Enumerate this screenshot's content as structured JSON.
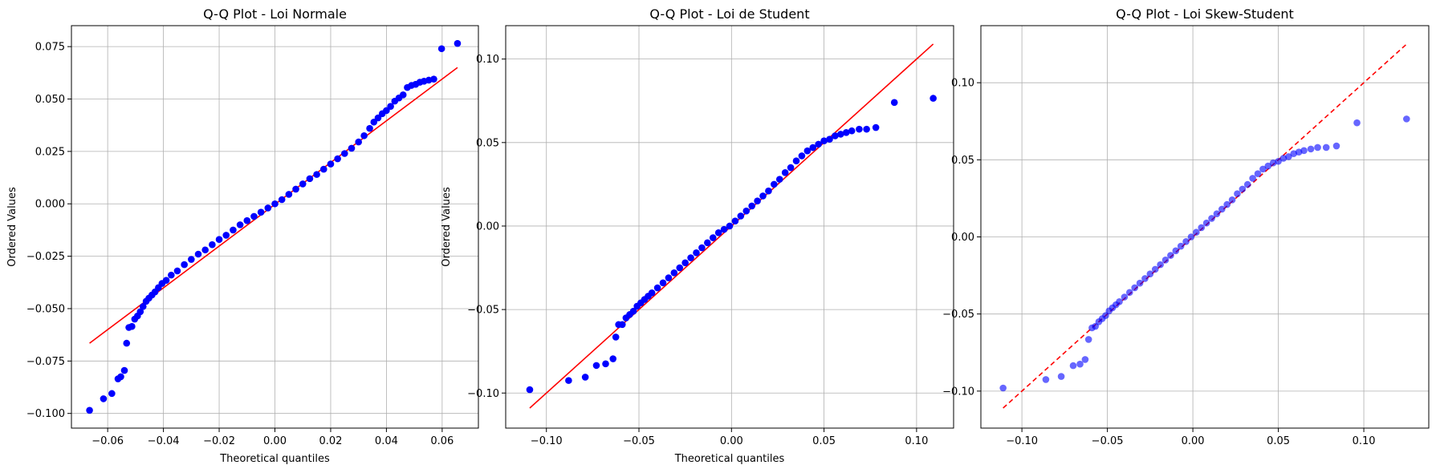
{
  "chart_data": [
    {
      "type": "scatter",
      "title": "Q-Q Plot - Loi Normale",
      "xlabel": "Theoretical quantiles",
      "ylabel": "Ordered Values",
      "xlim": [
        -0.073,
        0.073
      ],
      "ylim": [
        -0.107,
        0.085
      ],
      "xticks": [
        -0.06,
        -0.04,
        -0.02,
        0.0,
        0.02,
        0.04,
        0.06
      ],
      "xtick_labels": [
        "−0.06",
        "−0.04",
        "−0.02",
        "0.00",
        "0.02",
        "0.04",
        "0.06"
      ],
      "yticks": [
        -0.1,
        -0.075,
        -0.05,
        -0.025,
        0.0,
        0.025,
        0.05,
        0.075
      ],
      "ytick_labels": [
        "−0.100",
        "−0.075",
        "−0.050",
        "−0.025",
        "0.000",
        "0.025",
        "0.050",
        "0.075"
      ],
      "grid": true,
      "series": [
        {
          "kind": "points",
          "color": "#0000ff",
          "opacity": 1,
          "x": [
            -0.0665,
            -0.0615,
            -0.0585,
            -0.0563,
            -0.0553,
            -0.054,
            -0.0532,
            -0.0524,
            -0.0513,
            -0.0503,
            -0.0493,
            -0.0483,
            -0.0473,
            -0.0462,
            -0.0452,
            -0.0441,
            -0.043,
            -0.0418,
            -0.0405,
            -0.039,
            -0.0372,
            -0.035,
            -0.0325,
            -0.03,
            -0.0275,
            -0.025,
            -0.0225,
            -0.02,
            -0.0175,
            -0.015,
            -0.0125,
            -0.01,
            -0.0075,
            -0.005,
            -0.0025,
            0.0,
            0.0025,
            0.005,
            0.0075,
            0.01,
            0.0125,
            0.015,
            0.0175,
            0.02,
            0.0225,
            0.025,
            0.0275,
            0.03,
            0.032,
            0.034,
            0.0355,
            0.037,
            0.0385,
            0.04,
            0.0415,
            0.043,
            0.0445,
            0.046,
            0.0475,
            0.049,
            0.0505,
            0.052,
            0.0535,
            0.0552,
            0.057,
            0.0598,
            0.0655
          ],
          "y": [
            -0.0985,
            -0.093,
            -0.0905,
            -0.0835,
            -0.0825,
            -0.0795,
            -0.0665,
            -0.059,
            -0.0585,
            -0.055,
            -0.0535,
            -0.0515,
            -0.049,
            -0.0465,
            -0.045,
            -0.0435,
            -0.042,
            -0.04,
            -0.038,
            -0.0365,
            -0.034,
            -0.032,
            -0.029,
            -0.0265,
            -0.024,
            -0.022,
            -0.0195,
            -0.017,
            -0.015,
            -0.0125,
            -0.01,
            -0.008,
            -0.006,
            -0.004,
            -0.002,
            0.0,
            0.002,
            0.0045,
            0.007,
            0.0095,
            0.012,
            0.014,
            0.0165,
            0.019,
            0.0215,
            0.024,
            0.0265,
            0.0295,
            0.0325,
            0.036,
            0.039,
            0.041,
            0.043,
            0.0445,
            0.0465,
            0.049,
            0.0505,
            0.052,
            0.0555,
            0.0565,
            0.057,
            0.058,
            0.0585,
            0.059,
            0.0595,
            0.074,
            0.0765
          ]
        },
        {
          "kind": "line",
          "color": "#ff0000",
          "dashed": false,
          "x": [
            -0.0665,
            0.0655
          ],
          "y": [
            -0.0665,
            0.065
          ]
        }
      ]
    },
    {
      "type": "scatter",
      "title": "Q-Q Plot - Loi de Student",
      "xlabel": "Theoretical quantiles",
      "ylabel": "Ordered Values",
      "xlim": [
        -0.122,
        0.12
      ],
      "ylim": [
        -0.121,
        0.12
      ],
      "xticks": [
        -0.1,
        -0.05,
        0.0,
        0.05,
        0.1
      ],
      "xtick_labels": [
        "−0.10",
        "−0.05",
        "0.00",
        "0.05",
        "0.10"
      ],
      "yticks": [
        -0.1,
        -0.05,
        0.0,
        0.05,
        0.1
      ],
      "ytick_labels": [
        "−0.10",
        "−0.05",
        "0.00",
        "0.05",
        "0.10"
      ],
      "grid": true,
      "series": [
        {
          "kind": "points",
          "color": "#0000ff",
          "opacity": 1,
          "x": [
            -0.109,
            -0.088,
            -0.079,
            -0.073,
            -0.068,
            -0.064,
            -0.0625,
            -0.061,
            -0.059,
            -0.057,
            -0.055,
            -0.053,
            -0.051,
            -0.049,
            -0.047,
            -0.045,
            -0.043,
            -0.04,
            -0.037,
            -0.034,
            -0.031,
            -0.028,
            -0.025,
            -0.022,
            -0.019,
            -0.016,
            -0.013,
            -0.01,
            -0.007,
            -0.004,
            -0.001,
            0.002,
            0.005,
            0.008,
            0.011,
            0.014,
            0.017,
            0.02,
            0.023,
            0.026,
            0.029,
            0.032,
            0.035,
            0.038,
            0.041,
            0.044,
            0.047,
            0.05,
            0.053,
            0.056,
            0.059,
            0.062,
            0.065,
            0.069,
            0.073,
            0.078,
            0.088,
            0.109
          ],
          "y": [
            -0.098,
            -0.0925,
            -0.0905,
            -0.0835,
            -0.0825,
            -0.0795,
            -0.0665,
            -0.059,
            -0.059,
            -0.055,
            -0.053,
            -0.051,
            -0.048,
            -0.046,
            -0.044,
            -0.042,
            -0.04,
            -0.037,
            -0.034,
            -0.031,
            -0.028,
            -0.025,
            -0.022,
            -0.019,
            -0.016,
            -0.013,
            -0.01,
            -0.007,
            -0.004,
            -0.002,
            0.0,
            0.003,
            0.006,
            0.009,
            0.012,
            0.015,
            0.018,
            0.021,
            0.025,
            0.028,
            0.032,
            0.035,
            0.039,
            0.042,
            0.045,
            0.047,
            0.049,
            0.051,
            0.052,
            0.054,
            0.055,
            0.056,
            0.057,
            0.058,
            0.058,
            0.059,
            0.074,
            0.0765
          ]
        },
        {
          "kind": "line",
          "color": "#ff0000",
          "dashed": false,
          "x": [
            -0.109,
            0.109
          ],
          "y": [
            -0.109,
            0.109
          ]
        }
      ]
    },
    {
      "type": "scatter",
      "title": "Q-Q Plot - Loi Skew-Student",
      "xlabel": "",
      "ylabel": "",
      "xlim": [
        -0.124,
        0.138
      ],
      "ylim": [
        -0.124,
        0.137
      ],
      "xticks": [
        -0.1,
        -0.05,
        0.0,
        0.05,
        0.1
      ],
      "xtick_labels": [
        "−0.10",
        "−0.05",
        "0.00",
        "0.05",
        "0.10"
      ],
      "yticks": [
        -0.1,
        -0.05,
        0.0,
        0.05,
        0.1
      ],
      "ytick_labels": [
        "−0.10",
        "−0.05",
        "0.00",
        "0.05",
        "0.10"
      ],
      "grid": true,
      "series": [
        {
          "kind": "points",
          "color": "#0000ff",
          "opacity": 0.6,
          "x": [
            -0.111,
            -0.086,
            -0.077,
            -0.07,
            -0.066,
            -0.063,
            -0.061,
            -0.059,
            -0.057,
            -0.055,
            -0.053,
            -0.051,
            -0.049,
            -0.047,
            -0.045,
            -0.043,
            -0.04,
            -0.037,
            -0.034,
            -0.031,
            -0.028,
            -0.025,
            -0.022,
            -0.019,
            -0.016,
            -0.013,
            -0.01,
            -0.007,
            -0.004,
            -0.001,
            0.002,
            0.005,
            0.008,
            0.011,
            0.014,
            0.017,
            0.02,
            0.023,
            0.026,
            0.029,
            0.032,
            0.035,
            0.038,
            0.041,
            0.044,
            0.047,
            0.05,
            0.053,
            0.056,
            0.059,
            0.062,
            0.065,
            0.069,
            0.073,
            0.078,
            0.084,
            0.096,
            0.125
          ],
          "y": [
            -0.098,
            -0.0925,
            -0.0905,
            -0.0835,
            -0.0825,
            -0.0795,
            -0.0665,
            -0.059,
            -0.058,
            -0.055,
            -0.053,
            -0.051,
            -0.048,
            -0.046,
            -0.044,
            -0.042,
            -0.039,
            -0.036,
            -0.033,
            -0.03,
            -0.027,
            -0.024,
            -0.021,
            -0.018,
            -0.015,
            -0.012,
            -0.009,
            -0.006,
            -0.003,
            0.0,
            0.003,
            0.006,
            0.009,
            0.012,
            0.015,
            0.018,
            0.021,
            0.024,
            0.028,
            0.031,
            0.034,
            0.038,
            0.041,
            0.044,
            0.046,
            0.048,
            0.049,
            0.051,
            0.052,
            0.054,
            0.055,
            0.056,
            0.057,
            0.058,
            0.058,
            0.059,
            0.074,
            0.0765
          ]
        },
        {
          "kind": "line",
          "color": "#ff0000",
          "dashed": true,
          "x": [
            -0.111,
            0.125
          ],
          "y": [
            -0.111,
            0.125
          ]
        }
      ]
    }
  ]
}
